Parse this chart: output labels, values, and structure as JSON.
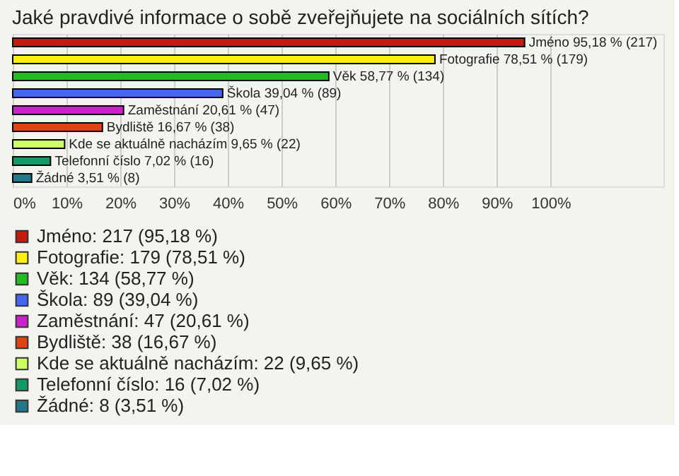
{
  "chart_data": {
    "type": "bar",
    "orientation": "horizontal",
    "title": "Jaké pravdivé informace o sobě zveřejňujete na sociálních sítích?",
    "categories": [
      "Jméno",
      "Fotografie",
      "Věk",
      "Škola",
      "Zaměstnání",
      "Bydliště",
      "Kde se aktuálně nacházím",
      "Telefonní číslo",
      "Žádné"
    ],
    "series": [
      {
        "name": "Jméno: 217 (95,18 %)",
        "color": "#c41a10",
        "values": [
          95.18,
          null,
          null,
          null,
          null,
          null,
          null,
          null,
          null
        ],
        "value_labels": [
          "95,18 % (217)",
          null,
          null,
          null,
          null,
          null,
          null,
          null,
          null
        ]
      },
      {
        "name": "Fotografie: 179 (78,51 %)",
        "color": "#ffee11",
        "values": [
          null,
          78.51,
          null,
          null,
          null,
          null,
          null,
          null,
          null
        ],
        "value_labels": [
          null,
          "78,51 % (179)",
          null,
          null,
          null,
          null,
          null,
          null,
          null
        ]
      },
      {
        "name": "Věk: 134 (58,77 %)",
        "color": "#22bb22",
        "values": [
          null,
          null,
          58.77,
          null,
          null,
          null,
          null,
          null,
          null
        ],
        "value_labels": [
          null,
          null,
          "58,77 % (134)",
          null,
          null,
          null,
          null,
          null,
          null
        ]
      },
      {
        "name": "Škola: 89 (39,04 %)",
        "color": "#4466ee",
        "values": [
          null,
          null,
          null,
          39.04,
          null,
          null,
          null,
          null,
          null
        ],
        "value_labels": [
          null,
          null,
          null,
          "39,04 % (89)",
          null,
          null,
          null,
          null,
          null
        ]
      },
      {
        "name": "Zaměstnání: 47 (20,61 %)",
        "color": "#cc22cc",
        "values": [
          null,
          null,
          null,
          null,
          20.61,
          null,
          null,
          null,
          null
        ],
        "value_labels": [
          null,
          null,
          null,
          null,
          "20,61 % (47)",
          null,
          null,
          null,
          null
        ]
      },
      {
        "name": "Bydliště: 38 (16,67 %)",
        "color": "#dd4411",
        "values": [
          null,
          null,
          null,
          null,
          null,
          16.67,
          null,
          null,
          null
        ],
        "value_labels": [
          null,
          null,
          null,
          null,
          null,
          "16,67 % (38)",
          null,
          null,
          null
        ]
      },
      {
        "name": "Kde se aktuálně nacházím: 22 (9,65 %)",
        "color": "#ccff66",
        "values": [
          null,
          null,
          null,
          null,
          null,
          null,
          9.65,
          null,
          null
        ],
        "value_labels": [
          null,
          null,
          null,
          null,
          null,
          null,
          "9,65 % (22)",
          null,
          null
        ]
      },
      {
        "name": "Telefonní číslo: 16 (7,02 %)",
        "color": "#119966",
        "values": [
          null,
          null,
          null,
          null,
          null,
          null,
          null,
          7.02,
          null
        ],
        "value_labels": [
          null,
          null,
          null,
          null,
          null,
          null,
          null,
          "7,02 % (16)",
          null
        ]
      },
      {
        "name": "Žádné: 8 (3,51 %)",
        "color": "#227788",
        "values": [
          null,
          null,
          null,
          null,
          null,
          null,
          null,
          null,
          3.51
        ],
        "value_labels": [
          null,
          null,
          null,
          null,
          null,
          null,
          null,
          null,
          "3,51 % (8)"
        ]
      }
    ],
    "xlim": [
      0,
      121
    ],
    "xticks": [
      {
        "value": 0,
        "label": "0%"
      },
      {
        "value": 10,
        "label": "10%"
      },
      {
        "value": 20,
        "label": "20%"
      },
      {
        "value": 30,
        "label": "30%"
      },
      {
        "value": 40,
        "label": "40%"
      },
      {
        "value": 50,
        "label": "50%"
      },
      {
        "value": 60,
        "label": "60%"
      },
      {
        "value": 70,
        "label": "70%"
      },
      {
        "value": 80,
        "label": "80%"
      },
      {
        "value": 90,
        "label": "90%"
      },
      {
        "value": 100,
        "label": "100%"
      }
    ],
    "grid": "x",
    "legend": "bottom",
    "tick_labels": "x"
  }
}
